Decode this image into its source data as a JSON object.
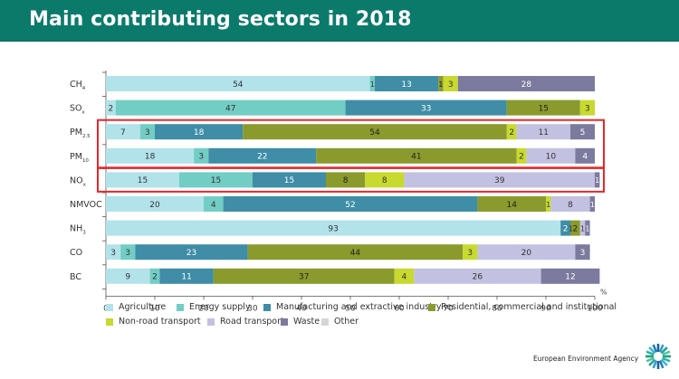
{
  "header": {
    "title": "Main contributing sectors in 2018"
  },
  "chart_data": {
    "type": "bar",
    "orientation": "horizontal",
    "stacked": true,
    "title": "Main contributing sectors in 2018",
    "xlabel": "%",
    "ylabel": "",
    "xlim": [
      0,
      100
    ],
    "x_ticks": [
      "0",
      "10",
      "20",
      "30",
      "40",
      "50",
      "60",
      "70",
      "80",
      "90",
      "100"
    ],
    "x_unit_label": "%",
    "legend_position": "bottom",
    "categories": [
      {
        "label": "CH",
        "sub": "4"
      },
      {
        "label": "SO",
        "sub": "x"
      },
      {
        "label": "PM",
        "sub": "2.5"
      },
      {
        "label": "PM",
        "sub": "10"
      },
      {
        "label": "NO",
        "sub": "x"
      },
      {
        "label": "NMVOC",
        "sub": ""
      },
      {
        "label": "NH",
        "sub": "3"
      },
      {
        "label": "CO",
        "sub": ""
      },
      {
        "label": "BC",
        "sub": ""
      }
    ],
    "series": [
      {
        "name": "Agriculture",
        "color": "#b2e2ea",
        "label_color": "#333333",
        "values": [
          54,
          2,
          7,
          18,
          15,
          20,
          93,
          3,
          9
        ]
      },
      {
        "name": "Energy supply",
        "color": "#72cdc5",
        "label_color": "#333333",
        "values": [
          1,
          47,
          3,
          3,
          15,
          4,
          0,
          3,
          2
        ]
      },
      {
        "name": "Manufacturing and extractive industry",
        "color": "#3f8da6",
        "label_color": "#ffffff",
        "values": [
          13,
          33,
          18,
          22,
          15,
          52,
          2,
          23,
          11
        ]
      },
      {
        "name": "Residential, commercial and institutional",
        "color": "#8a9a2d",
        "label_color": "#222222",
        "values": [
          1,
          15,
          54,
          41,
          8,
          14,
          2,
          44,
          37
        ]
      },
      {
        "name": "Non-road transport",
        "color": "#c8d92f",
        "label_color": "#333333",
        "values": [
          3,
          3,
          2,
          2,
          8,
          1,
          0,
          3,
          4
        ]
      },
      {
        "name": "Road transport",
        "color": "#c3c1e1",
        "label_color": "#333333",
        "values": [
          0,
          0,
          11,
          10,
          39,
          8,
          1,
          20,
          26
        ]
      },
      {
        "name": "Waste",
        "color": "#7c7a9e",
        "label_color": "#ffffff",
        "values": [
          28,
          0,
          5,
          4,
          1,
          1,
          1,
          3,
          12
        ]
      },
      {
        "name": "Other",
        "color": "#d6d6d6",
        "label_color": "#333333",
        "values": [
          0,
          0,
          0,
          0,
          0,
          0,
          0,
          0,
          0
        ]
      }
    ],
    "extra_labels": [
      {
        "category_index": 6,
        "between_series": [
          2,
          3
        ],
        "text": "1"
      }
    ],
    "highlighted_groups": [
      {
        "categories": [
          "PM2.5",
          "PM10"
        ],
        "color": "#e8262b"
      },
      {
        "categories": [
          "NOx"
        ],
        "color": "#e8262b"
      }
    ]
  },
  "legend": {
    "items": [
      {
        "label": "Agriculture",
        "color": "#b2e2ea"
      },
      {
        "label": "Energy supply",
        "color": "#72cdc5"
      },
      {
        "label": "Manufacturing and extractive industry",
        "color": "#3f8da6"
      },
      {
        "label": "Residential, commercial and institutional",
        "color": "#8a9a2d"
      },
      {
        "label": "Non-road transport",
        "color": "#c8d92f"
      },
      {
        "label": "Road transport",
        "color": "#c3c1e1"
      },
      {
        "label": "Waste",
        "color": "#7c7a9e"
      },
      {
        "label": "Other",
        "color": "#d6d6d6"
      }
    ]
  },
  "footer": {
    "brand": "European Environment Agency"
  }
}
